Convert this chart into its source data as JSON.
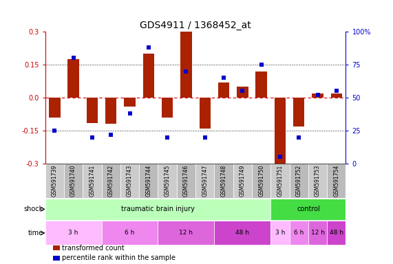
{
  "title": "GDS4911 / 1368452_at",
  "samples": [
    "GSM591739",
    "GSM591740",
    "GSM591741",
    "GSM591742",
    "GSM591743",
    "GSM591744",
    "GSM591745",
    "GSM591746",
    "GSM591747",
    "GSM591748",
    "GSM591749",
    "GSM591750",
    "GSM591751",
    "GSM591752",
    "GSM591753",
    "GSM591754"
  ],
  "bar_values": [
    -0.09,
    0.175,
    -0.115,
    -0.12,
    -0.04,
    0.2,
    -0.09,
    0.3,
    -0.14,
    0.07,
    0.05,
    0.12,
    -0.32,
    -0.13,
    0.02,
    0.02
  ],
  "dot_pct": [
    25,
    80,
    20,
    22,
    38,
    88,
    20,
    70,
    20,
    65,
    55,
    75,
    5,
    20,
    52,
    55
  ],
  "ylim": [
    -0.3,
    0.3
  ],
  "yticks_left": [
    -0.3,
    -0.15,
    0.0,
    0.15,
    0.3
  ],
  "yticks_right": [
    0,
    25,
    50,
    75,
    100
  ],
  "bar_color": "#aa2200",
  "dot_color": "#0000cc",
  "hline_red_color": "#cc0000",
  "hline_dot_color": "#222222",
  "shock_groups": [
    {
      "label": "traumatic brain injury",
      "start": 0,
      "end": 12,
      "color": "#bbffbb"
    },
    {
      "label": "control",
      "start": 12,
      "end": 16,
      "color": "#44dd44"
    }
  ],
  "time_groups": [
    {
      "label": "3 h",
      "start": 0,
      "end": 3,
      "color": "#ffbbff"
    },
    {
      "label": "6 h",
      "start": 3,
      "end": 6,
      "color": "#ee88ee"
    },
    {
      "label": "12 h",
      "start": 6,
      "end": 9,
      "color": "#dd66dd"
    },
    {
      "label": "48 h",
      "start": 9,
      "end": 12,
      "color": "#cc44cc"
    },
    {
      "label": "3 h",
      "start": 12,
      "end": 13,
      "color": "#ffbbff"
    },
    {
      "label": "6 h",
      "start": 13,
      "end": 14,
      "color": "#ee88ee"
    },
    {
      "label": "12 h",
      "start": 14,
      "end": 15,
      "color": "#dd66dd"
    },
    {
      "label": "48 h",
      "start": 15,
      "end": 16,
      "color": "#cc44cc"
    }
  ],
  "sample_box_colors": [
    "#cccccc",
    "#bbbbbb"
  ],
  "bg_color": "#ffffff",
  "left_label_color": "#cc0000",
  "right_label_color": "#0000cc",
  "title_fontsize": 10,
  "tick_fontsize": 7,
  "sample_fontsize": 5.5,
  "annot_fontsize": 7,
  "legend_fontsize": 7
}
